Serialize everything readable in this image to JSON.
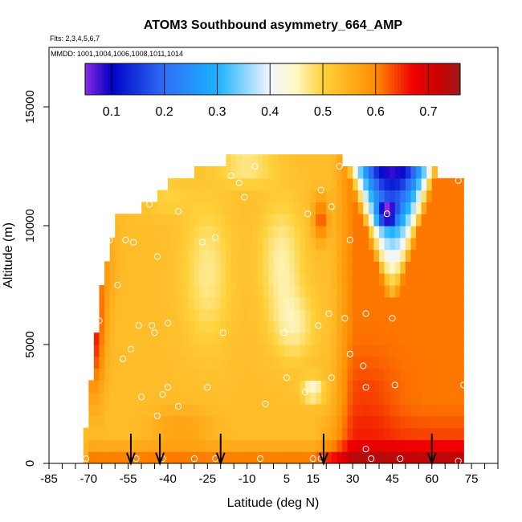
{
  "chart_data": {
    "type": "heatmap",
    "title": "ATOM3 Southbound asymmetry_664_AMP",
    "flights_note": "Flts: 2,3,4,5,6,7",
    "mmdd_note": "MMDD: 1001,1004,1006,1008,1011,1014",
    "xlabel": "Latitude (deg N)",
    "ylabel": "Altitude (m)",
    "xlim": [
      -85,
      85
    ],
    "ylim": [
      0,
      17500
    ],
    "x_ticks": [
      -85,
      -70,
      -55,
      -40,
      -25,
      -10,
      5,
      15,
      30,
      45,
      60,
      75
    ],
    "x_tick_labels": [
      "-85",
      "-70",
      "-55",
      "-40",
      "-25",
      "-10",
      "5",
      "15",
      "30",
      "45",
      "60",
      "75"
    ],
    "x_minor_step": 5,
    "y_ticks": [
      0,
      5000,
      10000,
      15000
    ],
    "y_tick_labels": [
      "0",
      "5000",
      "10000",
      "15000"
    ],
    "colorbar": {
      "range": [
        0.05,
        0.76
      ],
      "ticks": [
        0.1,
        0.2,
        0.3,
        0.4,
        0.5,
        0.6,
        0.7
      ],
      "tick_labels": [
        "0.1",
        "0.2",
        "0.3",
        "0.4",
        "0.5",
        "0.6",
        "0.7"
      ],
      "stops": [
        {
          "v": 0.05,
          "c": "#8a2be2"
        },
        {
          "v": 0.1,
          "c": "#0000c8"
        },
        {
          "v": 0.2,
          "c": "#2f6ff5"
        },
        {
          "v": 0.3,
          "c": "#1ab2ff"
        },
        {
          "v": 0.4,
          "c": "#f2f6ff"
        },
        {
          "v": 0.45,
          "c": "#fff7c4"
        },
        {
          "v": 0.5,
          "c": "#ffd23c"
        },
        {
          "v": 0.6,
          "c": "#ff8c00"
        },
        {
          "v": 0.67,
          "c": "#f00000"
        },
        {
          "v": 0.72,
          "c": "#cc0000"
        },
        {
          "v": 0.76,
          "c": "#9e1a1a"
        }
      ]
    },
    "field": {
      "lat_min": -72,
      "lat_max": 72,
      "lat_step": 2,
      "alt_min": 0,
      "alt_max": 13000,
      "alt_step": 500,
      "max_altitude_by_latitude": [
        {
          "lat": -72,
          "alt": 0
        },
        {
          "lat": -70,
          "alt": 2500
        },
        {
          "lat": -65,
          "alt": 7500
        },
        {
          "lat": -60,
          "alt": 10000
        },
        {
          "lat": -50,
          "alt": 10500
        },
        {
          "lat": -40,
          "alt": 11500
        },
        {
          "lat": -30,
          "alt": 12000
        },
        {
          "lat": -18,
          "alt": 12500
        },
        {
          "lat": -10,
          "alt": 13000
        },
        {
          "lat": 25,
          "alt": 13000
        },
        {
          "lat": 26,
          "alt": 12500
        },
        {
          "lat": 55,
          "alt": 12500
        },
        {
          "lat": 62,
          "alt": 12000
        },
        {
          "lat": 72,
          "alt": 12000
        }
      ]
    },
    "profile_markers_lat": [
      -54,
      -43,
      -20,
      19,
      60
    ],
    "sample_points": [
      {
        "lat": -71,
        "alt": 200
      },
      {
        "lat": -52,
        "alt": 200
      },
      {
        "lat": -42,
        "alt": 200
      },
      {
        "lat": -30,
        "alt": 200
      },
      {
        "lat": -22,
        "alt": 200
      },
      {
        "lat": -5,
        "alt": 200
      },
      {
        "lat": 15,
        "alt": 200
      },
      {
        "lat": 18,
        "alt": 200
      },
      {
        "lat": 37,
        "alt": 200
      },
      {
        "lat": 48,
        "alt": 200
      },
      {
        "lat": 70,
        "alt": 100
      },
      {
        "lat": 35,
        "alt": 600
      },
      {
        "lat": -50,
        "alt": 2800
      },
      {
        "lat": -40,
        "alt": 3200
      },
      {
        "lat": -42,
        "alt": 2900
      },
      {
        "lat": -44,
        "alt": 2000
      },
      {
        "lat": -36,
        "alt": 2400
      },
      {
        "lat": -25,
        "alt": 3200
      },
      {
        "lat": -3,
        "alt": 2500
      },
      {
        "lat": 12,
        "alt": 3000
      },
      {
        "lat": 22,
        "alt": 3600
      },
      {
        "lat": 5,
        "alt": 3600
      },
      {
        "lat": 35,
        "alt": 3200
      },
      {
        "lat": 46,
        "alt": 3300
      },
      {
        "lat": 72,
        "alt": 3300
      },
      {
        "lat": -57,
        "alt": 4400
      },
      {
        "lat": -54,
        "alt": 4800
      },
      {
        "lat": -45,
        "alt": 5500
      },
      {
        "lat": -19,
        "alt": 5500
      },
      {
        "lat": 4,
        "alt": 5500
      },
      {
        "lat": 29,
        "alt": 4600
      },
      {
        "lat": 34,
        "alt": 4100
      },
      {
        "lat": -66,
        "alt": 6000
      },
      {
        "lat": -51,
        "alt": 5800
      },
      {
        "lat": -46,
        "alt": 5800
      },
      {
        "lat": -40,
        "alt": 5900
      },
      {
        "lat": 17,
        "alt": 5800
      },
      {
        "lat": 21,
        "alt": 6300
      },
      {
        "lat": 27,
        "alt": 6100
      },
      {
        "lat": 35,
        "alt": 6300
      },
      {
        "lat": 45,
        "alt": 6100
      },
      {
        "lat": -59,
        "alt": 7500
      },
      {
        "lat": -44,
        "alt": 8700
      },
      {
        "lat": -79,
        "alt": 10000
      },
      {
        "lat": -72,
        "alt": 10000
      },
      {
        "lat": -69,
        "alt": 9900
      },
      {
        "lat": -67,
        "alt": 10300
      },
      {
        "lat": -63,
        "alt": 9400
      },
      {
        "lat": -62,
        "alt": 9400
      },
      {
        "lat": -56,
        "alt": 9400
      },
      {
        "lat": -53,
        "alt": 9300
      },
      {
        "lat": -47,
        "alt": 10900
      },
      {
        "lat": -36,
        "alt": 10600
      },
      {
        "lat": -27,
        "alt": 9300
      },
      {
        "lat": -22,
        "alt": 9500
      },
      {
        "lat": -11,
        "alt": 11200
      },
      {
        "lat": -13,
        "alt": 11800
      },
      {
        "lat": -16,
        "alt": 12100
      },
      {
        "lat": -7,
        "alt": 12500
      },
      {
        "lat": 18,
        "alt": 11500
      },
      {
        "lat": 25,
        "alt": 12500
      },
      {
        "lat": 13,
        "alt": 10500
      },
      {
        "lat": 22,
        "alt": 10800
      },
      {
        "lat": 29,
        "alt": 9400
      },
      {
        "lat": 43,
        "alt": 10500
      },
      {
        "lat": 70,
        "alt": 11900
      }
    ]
  }
}
